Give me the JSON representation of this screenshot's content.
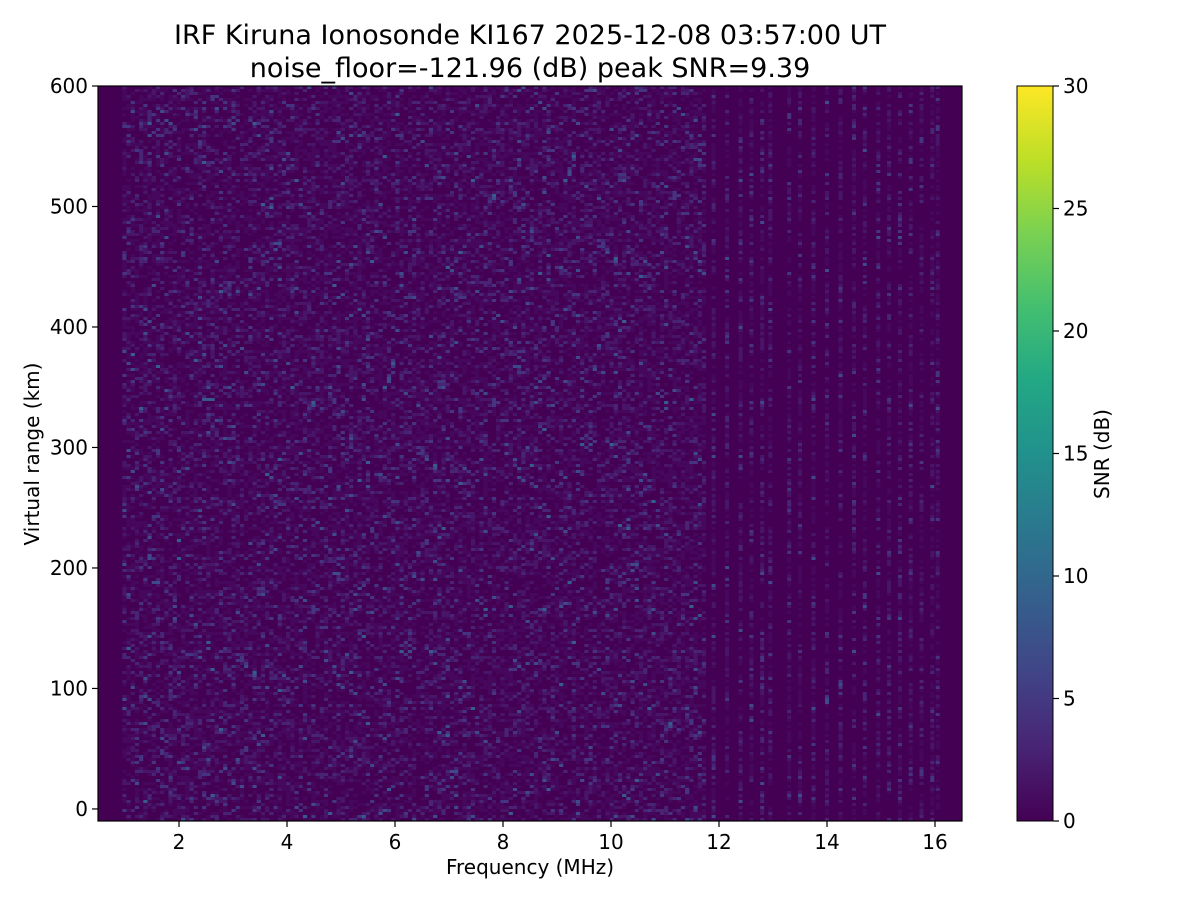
{
  "chart_data": {
    "type": "heatmap",
    "title_line1": "IRF Kiruna Ionosonde KI167 2025-12-08 03:57:00  UT",
    "title_line2": "noise_floor=-121.96 (dB) peak SNR=9.39",
    "xlabel": "Frequency (MHz)",
    "ylabel": "Virtual range (km)",
    "colorbar_label": "SNR (dB)",
    "xlim": [
      0.5,
      16.5
    ],
    "ylim": [
      -10,
      600
    ],
    "x_ticks": [
      2,
      4,
      6,
      8,
      10,
      12,
      14,
      16
    ],
    "y_ticks": [
      0,
      100,
      200,
      300,
      400,
      500,
      600
    ],
    "colorbar_range": [
      0,
      30
    ],
    "colorbar_ticks": [
      0,
      5,
      10,
      15,
      20,
      25,
      30
    ],
    "colormap": "viridis",
    "noise_floor_db": -121.96,
    "peak_snr_db": 9.39,
    "dense_band_end_mhz": 11.7,
    "empty_low_band_end_mhz": 0.95,
    "high_band_active_channels_mhz": [
      11.9,
      12.15,
      12.4,
      12.6,
      12.8,
      12.95,
      13.3,
      13.5,
      13.75,
      14.0,
      14.25,
      14.5,
      14.7,
      14.95,
      15.15,
      15.35,
      15.55,
      15.75,
      15.95,
      16.05
    ]
  }
}
